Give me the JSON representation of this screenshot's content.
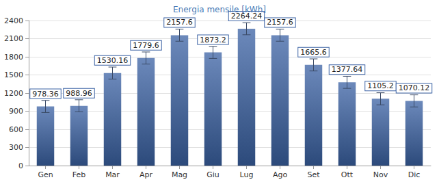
{
  "chart_data": {
    "type": "bar",
    "title": "Energia mensile [kWh]",
    "categories": [
      "Gen",
      "Feb",
      "Mar",
      "Apr",
      "Mag",
      "Giu",
      "Lug",
      "Ago",
      "Set",
      "Ott",
      "Nov",
      "Dic"
    ],
    "values": [
      978.36,
      988.96,
      1530.16,
      1779.6,
      2157.6,
      1873.2,
      2264.24,
      2157.6,
      1665.6,
      1377.64,
      1105.2,
      1070.12
    ],
    "errors": [
      100,
      100,
      100,
      100,
      100,
      100,
      100,
      100,
      100,
      100,
      100,
      100
    ],
    "color": "#3b62a4",
    "ylim": [
      0,
      2400
    ],
    "yticks": [
      0,
      300,
      600,
      900,
      1200,
      1500,
      1800,
      2100,
      2400
    ],
    "grid": true,
    "data_labels": true
  }
}
